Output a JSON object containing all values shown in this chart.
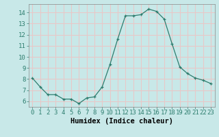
{
  "x": [
    0,
    1,
    2,
    3,
    4,
    5,
    6,
    7,
    8,
    9,
    10,
    11,
    12,
    13,
    14,
    15,
    16,
    17,
    18,
    19,
    20,
    21,
    22,
    23
  ],
  "y": [
    8.1,
    7.3,
    6.6,
    6.6,
    6.2,
    6.2,
    5.8,
    6.3,
    6.4,
    7.3,
    9.3,
    11.6,
    13.7,
    13.7,
    13.8,
    14.3,
    14.1,
    13.4,
    11.2,
    9.1,
    8.5,
    8.1,
    7.9,
    7.6
  ],
  "line_color": "#2d7d6e",
  "marker": "+",
  "marker_size": 3,
  "background_color": "#c8e8e8",
  "grid_color": "#e8c8c8",
  "xlabel": "Humidex (Indice chaleur)",
  "xlim": [
    -0.5,
    23.5
  ],
  "ylim": [
    5.5,
    14.75
  ],
  "yticks": [
    6,
    7,
    8,
    9,
    10,
    11,
    12,
    13,
    14
  ],
  "xticks": [
    0,
    1,
    2,
    3,
    4,
    5,
    6,
    7,
    8,
    9,
    10,
    11,
    12,
    13,
    14,
    15,
    16,
    17,
    18,
    19,
    20,
    21,
    22,
    23
  ],
  "xlabel_fontsize": 7.5,
  "tick_fontsize": 6.5
}
